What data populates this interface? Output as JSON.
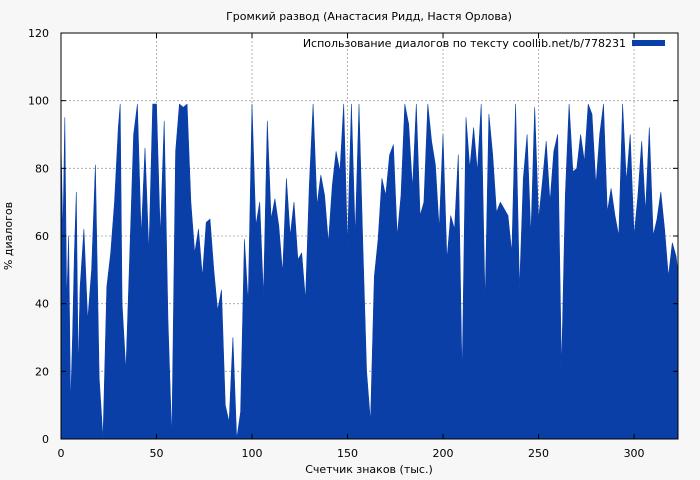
{
  "chart_data": {
    "type": "area",
    "title": "Громкий развод (Анастасия Ридд, Настя Орлова)",
    "xlabel": "Счетчик знаков (тыс.)",
    "ylabel": "% диалогов",
    "xlim": [
      0,
      323
    ],
    "ylim": [
      0,
      120
    ],
    "x_ticks": [
      0,
      50,
      100,
      150,
      200,
      250,
      300
    ],
    "y_ticks": [
      0,
      20,
      40,
      60,
      80,
      100,
      120
    ],
    "grid": true,
    "legend_position": "top-right",
    "series": [
      {
        "name": "Использование диалогов по тексту coollib.net/b/778231",
        "color": "#0a3fa8",
        "x": [
          0,
          1,
          2,
          3,
          4,
          5,
          6,
          7,
          8,
          9,
          10,
          12,
          14,
          16,
          18,
          20,
          22,
          24,
          26,
          28,
          30,
          31,
          32,
          34,
          36,
          38,
          40,
          42,
          44,
          46,
          48,
          50,
          52,
          54,
          56,
          58,
          60,
          62,
          64,
          66,
          68,
          70,
          72,
          74,
          76,
          78,
          80,
          82,
          84,
          86,
          88,
          90,
          92,
          94,
          96,
          98,
          100,
          102,
          104,
          106,
          108,
          110,
          112,
          114,
          116,
          118,
          120,
          122,
          124,
          126,
          128,
          130,
          132,
          134,
          136,
          138,
          140,
          142,
          144,
          146,
          148,
          150,
          152,
          154,
          156,
          158,
          160,
          162,
          164,
          166,
          168,
          170,
          172,
          174,
          176,
          178,
          180,
          182,
          184,
          186,
          188,
          190,
          192,
          194,
          196,
          198,
          200,
          202,
          204,
          206,
          208,
          210,
          212,
          214,
          216,
          218,
          220,
          222,
          224,
          226,
          228,
          230,
          232,
          234,
          236,
          238,
          240,
          242,
          244,
          246,
          248,
          250,
          252,
          254,
          256,
          258,
          260,
          262,
          264,
          266,
          268,
          270,
          272,
          274,
          276,
          278,
          280,
          282,
          284,
          286,
          288,
          290,
          292,
          294,
          296,
          298,
          300,
          302,
          304,
          306,
          308,
          310,
          312,
          314,
          316,
          318,
          320,
          322,
          323
        ],
        "y": [
          88,
          60,
          95,
          40,
          60,
          10,
          30,
          55,
          73,
          20,
          45,
          62,
          35,
          50,
          81,
          18,
          0,
          45,
          55,
          70,
          92,
          99,
          40,
          20,
          55,
          90,
          99,
          60,
          86,
          55,
          99,
          99,
          60,
          94,
          35,
          0,
          85,
          99,
          98,
          99,
          70,
          55,
          62,
          48,
          64,
          65,
          50,
          38,
          44,
          10,
          5,
          30,
          0,
          8,
          59,
          40,
          99,
          63,
          70,
          42,
          94,
          65,
          71,
          63,
          49,
          77,
          60,
          70,
          53,
          55,
          41,
          75,
          99,
          69,
          78,
          72,
          58,
          75,
          85,
          79,
          99,
          57,
          99,
          60,
          99,
          58,
          20,
          5,
          48,
          59,
          77,
          72,
          84,
          87,
          60,
          72,
          99,
          93,
          74,
          99,
          66,
          70,
          99,
          88,
          81,
          62,
          90,
          53,
          66,
          62,
          84,
          18,
          95,
          80,
          92,
          79,
          99,
          40,
          96,
          84,
          67,
          70,
          68,
          66,
          55,
          99,
          44,
          77,
          90,
          60,
          98,
          65,
          76,
          88,
          70,
          85,
          90,
          20,
          72,
          99,
          79,
          80,
          90,
          82,
          99,
          96,
          75,
          90,
          99,
          67,
          74,
          66,
          60,
          99,
          76,
          90,
          60,
          72,
          88,
          67,
          92,
          60,
          65,
          73,
          62,
          48,
          58,
          54,
          49
        ]
      }
    ]
  }
}
